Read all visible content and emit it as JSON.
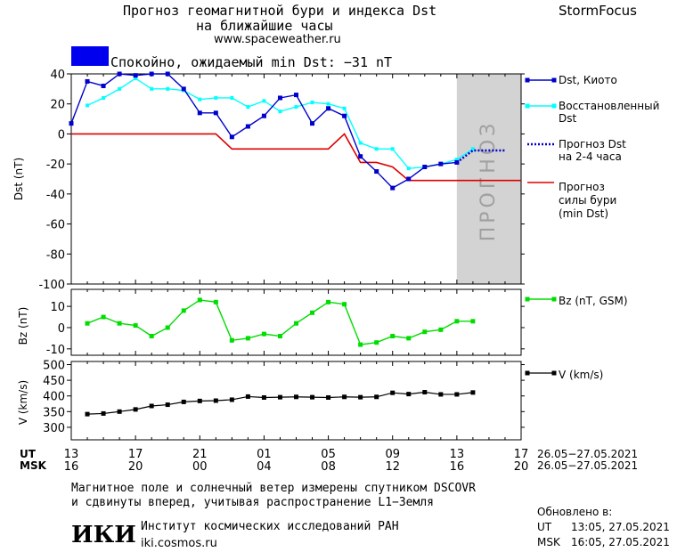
{
  "header": {
    "title_line1": "Прогноз геомагнитной бури и индекса Dst",
    "title_line2": "на ближайшие часы",
    "site": "www.spaceweather.ru",
    "brand": "StormFocus"
  },
  "status": {
    "text": "Спокойно, ожидаемый min Dst: −31 nT",
    "color": "#0000ee"
  },
  "forecast_label": "ПРОГНОЗ",
  "legend": {
    "dst_kyoto": "Dst, Киото",
    "restored_1": "Восстановленный",
    "restored_2": "Dst",
    "forecast_1": "Прогноз Dst",
    "forecast_2": "на 2-4 часа",
    "storm_1": "Прогноз",
    "storm_2": "силы бури",
    "storm_3": "(min Dst)",
    "bz": "Bz (nT, GSM)",
    "v": "V (km/s)"
  },
  "time_axis": {
    "ut_label": "UT",
    "msk_label": "MSK",
    "ut_ticks": [
      "13",
      "17",
      "21",
      "01",
      "05",
      "09",
      "13",
      "17"
    ],
    "msk_ticks": [
      "16",
      "20",
      "00",
      "04",
      "08",
      "12",
      "16",
      "20"
    ],
    "ut_range": "26.05−27.05.2021",
    "msk_range": "26.05−27.05.2021"
  },
  "footer": {
    "note_line1": "Магнитное поле и солнечный ветер измерены спутником DSCOVR",
    "note_line2": "и сдвинуты вперед, учитывая распространение L1−Земля",
    "logo": "ИКИ",
    "institute": "Институт космических исследований РАН",
    "institute_site": "iki.cosmos.ru",
    "updated_label": "Обновлено в:",
    "updated_ut_label": "UT",
    "updated_ut": "13:05, 27.05.2021",
    "updated_msk_label": "MSK",
    "updated_msk": "16:05, 27.05.2021"
  },
  "colors": {
    "dst_kyoto": "#0000cc",
    "restored": "#00ffff",
    "forecast": "#0000cc",
    "storm": "#dd0000",
    "bz": "#00dd00",
    "v": "#000000",
    "forecast_band": "#d3d3d3"
  },
  "chart_data": [
    {
      "type": "line",
      "ylabel": "Dst (nT)",
      "xlim": [
        0,
        28
      ],
      "ylim": [
        -100,
        40
      ],
      "yticks": [
        40,
        20,
        0,
        -20,
        -40,
        -60,
        -80,
        -100
      ],
      "forecast_band": [
        24,
        28
      ],
      "series": [
        {
          "name": "Dst, Киото",
          "x": [
            0,
            1,
            2,
            3,
            4,
            5,
            6,
            7,
            8,
            9,
            10,
            11,
            12,
            13,
            14,
            15,
            16,
            17,
            18,
            19,
            20,
            21,
            22,
            23,
            24
          ],
          "y": [
            7,
            35,
            32,
            40,
            39,
            40,
            40,
            30,
            14,
            14,
            -2,
            5,
            12,
            24,
            26,
            7,
            17,
            12,
            -15,
            -25,
            -36,
            -30,
            -22,
            -20,
            -19
          ]
        },
        {
          "name": "Восстановленный Dst",
          "x": [
            1,
            2,
            3,
            4,
            5,
            6,
            7,
            8,
            9,
            10,
            11,
            12,
            13,
            14,
            15,
            16,
            17,
            18,
            19,
            20,
            21,
            22,
            23,
            24,
            25
          ],
          "y": [
            19,
            24,
            30,
            37,
            30,
            30,
            29,
            23,
            24,
            24,
            18,
            22,
            15,
            18,
            21,
            20,
            17,
            -6,
            -10,
            -10,
            -23,
            -22,
            -20,
            -17,
            -10
          ]
        },
        {
          "name": "Прогноз Dst на 2-4 часа",
          "x": [
            24,
            25,
            26,
            27
          ],
          "y": [
            -19,
            -11,
            -11,
            -11
          ]
        },
        {
          "name": "Прогноз силы бури (min Dst)",
          "x": [
            0,
            9,
            10,
            16,
            17,
            18,
            19,
            20,
            21,
            28
          ],
          "y": [
            0,
            0,
            -10,
            -10,
            0,
            -19,
            -19,
            -22,
            -31,
            -31
          ]
        }
      ]
    },
    {
      "type": "line",
      "ylabel": "Bz (nT)",
      "xlim": [
        0,
        28
      ],
      "ylim": [
        -13,
        18
      ],
      "yticks": [
        10,
        0,
        -10
      ],
      "series": [
        {
          "name": "Bz (nT, GSM)",
          "x": [
            1,
            2,
            3,
            4,
            5,
            6,
            7,
            8,
            9,
            10,
            11,
            12,
            13,
            14,
            15,
            16,
            17,
            18,
            19,
            20,
            21,
            22,
            23,
            24,
            25
          ],
          "y": [
            2,
            5,
            2,
            1,
            -4,
            0,
            8,
            13,
            12,
            -6,
            -5,
            -3,
            -4,
            2,
            7,
            12,
            11,
            -8,
            -7,
            -4,
            -5,
            -2,
            -1,
            3,
            3
          ]
        }
      ]
    },
    {
      "type": "line",
      "ylabel": "V (km/s)",
      "xlim": [
        0,
        28
      ],
      "ylim": [
        260,
        510
      ],
      "yticks": [
        500,
        450,
        400,
        350,
        300,
        250
      ],
      "series": [
        {
          "name": "V (km/s)",
          "x": [
            1,
            2,
            3,
            4,
            5,
            6,
            7,
            8,
            9,
            10,
            11,
            12,
            13,
            14,
            15,
            16,
            17,
            18,
            19,
            20,
            21,
            22,
            23,
            24,
            25
          ],
          "y": [
            342,
            344,
            350,
            357,
            368,
            372,
            381,
            384,
            385,
            388,
            398,
            395,
            396,
            397,
            396,
            395,
            397,
            396,
            397,
            410,
            406,
            412,
            405,
            405,
            411
          ]
        }
      ]
    }
  ]
}
